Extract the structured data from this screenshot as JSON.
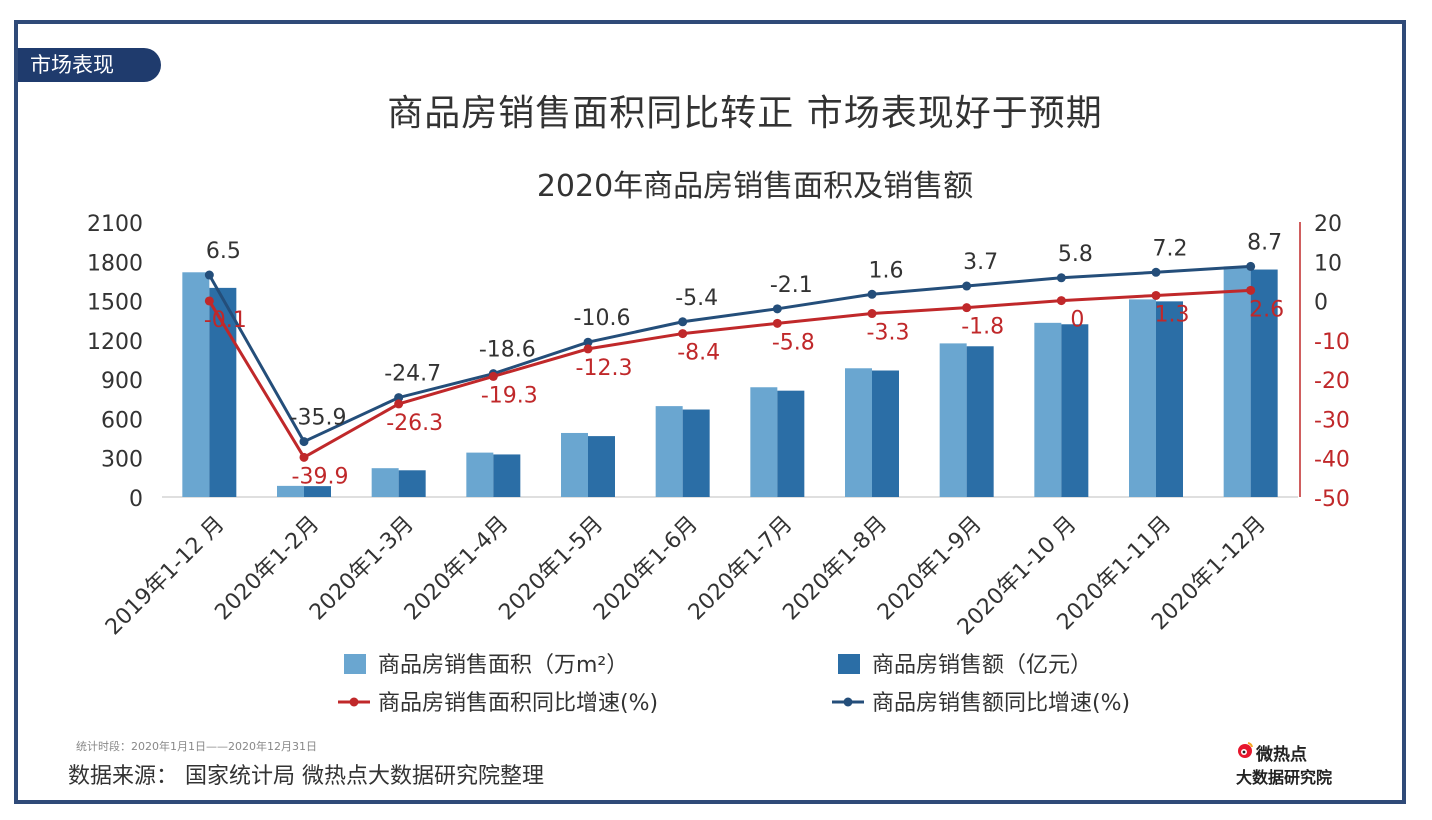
{
  "tag": "市场表现",
  "headline": "商品房销售面积同比转正 市场表现好于预期",
  "note": "统计时段：2020年1月1日——2020年12月31日",
  "source": "数据来源：  国家统计局  微热点大数据研究院整理",
  "logo": {
    "line1": "微热点",
    "line2": "大数据研究院",
    "icon": "weibo-eye-icon"
  },
  "colors": {
    "area_bar": "#6aa6d0",
    "amount_bar": "#2b6ea6",
    "area_line": "#c0282a",
    "amount_line": "#244e7a",
    "text": "#333333",
    "axis": "#bfbfbf"
  },
  "chart_data": {
    "type": "bar",
    "title": "2020年商品房销售面积及销售额",
    "categories": [
      "2019年1-12 月",
      "2020年1-2月",
      "2020年1-3月",
      "2020年1-4月",
      "2020年1-5月",
      "2020年1-6月",
      "2020年1-7月",
      "2020年1-8月",
      "2020年1-9月",
      "2020年1-10 月",
      "2020年1-11月",
      "2020年1-12月"
    ],
    "left_axis": {
      "min": 0,
      "max": 2100,
      "step": 300,
      "ticks": [
        "0",
        "300",
        "600",
        "900",
        "1200",
        "1500",
        "1800",
        "2100"
      ]
    },
    "right_axis": {
      "min": -50,
      "max": 20,
      "step": 10,
      "ticks": [
        "-50",
        "-40",
        "-30",
        "-20",
        "-10",
        "0",
        "10",
        "20"
      ]
    },
    "series": [
      {
        "name": "商品房销售面积（万m²）",
        "kind": "bar",
        "axis": "left",
        "values": [
          1716,
          85,
          220,
          339,
          489,
          694,
          838,
          983,
          1173,
          1330,
          1509,
          1761
        ]
      },
      {
        "name": "商品房销售额（亿元）",
        "kind": "bar",
        "axis": "left",
        "values": [
          1597,
          83,
          204,
          325,
          465,
          668,
          812,
          966,
          1151,
          1319,
          1494,
          1737
        ]
      },
      {
        "name": "商品房销售面积同比增速(%)",
        "kind": "line",
        "axis": "right",
        "values": [
          -0.1,
          -39.9,
          -26.3,
          -19.3,
          -12.3,
          -8.4,
          -5.8,
          -3.3,
          -1.8,
          0,
          1.3,
          2.6
        ],
        "labels": [
          "-0.1",
          "-39.9",
          "-26.3",
          "-19.3",
          "-12.3",
          "-8.4",
          "-5.8",
          "-3.3",
          "-1.8",
          "0",
          "1.3",
          "2.6"
        ]
      },
      {
        "name": "商品房销售额同比增速(%)",
        "kind": "line",
        "axis": "right",
        "values": [
          6.5,
          -35.9,
          -24.7,
          -18.6,
          -10.6,
          -5.4,
          -2.1,
          1.6,
          3.7,
          5.8,
          7.2,
          8.7
        ],
        "labels": [
          "6.5",
          "-35.9",
          "-24.7",
          "-18.6",
          "-10.6",
          "-5.4",
          "-2.1",
          "1.6",
          "3.7",
          "5.8",
          "7.2",
          "8.7"
        ]
      }
    ],
    "legend": [
      "商品房销售面积（万m²）",
      "商品房销售额（亿元）",
      "商品房销售面积同比增速(%)",
      "商品房销售额同比增速(%)"
    ],
    "legend_position": "bottom"
  }
}
